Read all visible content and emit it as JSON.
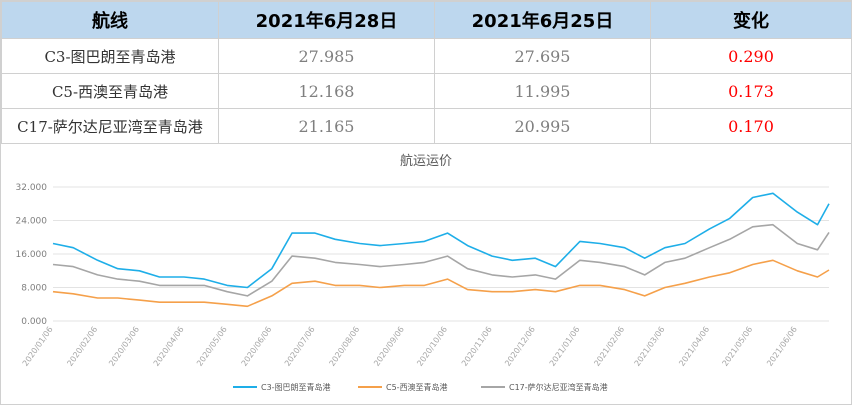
{
  "table": {
    "headers": [
      "航线",
      "2021年6月28日",
      "2021年6月25日",
      "变化"
    ],
    "rows": [
      [
        "C3-图巴朗至青岛港",
        "27.985",
        "27.695",
        "0.290"
      ],
      [
        "C5-西澳至青岛港",
        "12.168",
        "11.995",
        "0.173"
      ],
      [
        "C17-萨尔达尼亚湾至青岛港",
        "21.165",
        "20.995",
        "0.170"
      ]
    ]
  },
  "colors": {
    "c3": "#1eaee8",
    "c5": "#f5a04a",
    "c17": "#a6a6a6",
    "header_bg": "#bdd7ee",
    "positive": "#ff0000"
  },
  "chart_data": {
    "type": "line",
    "title": "航运运价",
    "ylim": [
      0,
      32
    ],
    "yticks": [
      "0.000",
      "8.000",
      "16.000",
      "24.000",
      "32.000"
    ],
    "xticks": [
      "2020/01/06",
      "2020/02/06",
      "2020/03/06",
      "2020/04/06",
      "2020/05/06",
      "2020/06/06",
      "2020/07/06",
      "2020/08/06",
      "2020/09/06",
      "2020/10/06",
      "2020/11/06",
      "2020/12/06",
      "2021/01/06",
      "2021/02/06",
      "2021/03/06",
      "2021/04/06",
      "2021/05/06",
      "2021/06/06"
    ],
    "x": [
      "2020/01/06",
      "2020/01/20",
      "2020/02/06",
      "2020/02/20",
      "2020/03/06",
      "2020/03/20",
      "2020/04/06",
      "2020/04/20",
      "2020/05/06",
      "2020/05/20",
      "2020/06/06",
      "2020/06/20",
      "2020/07/06",
      "2020/07/20",
      "2020/08/06",
      "2020/08/20",
      "2020/09/06",
      "2020/09/20",
      "2020/10/06",
      "2020/10/20",
      "2020/11/06",
      "2020/11/20",
      "2020/12/06",
      "2020/12/20",
      "2021/01/06",
      "2021/01/20",
      "2021/02/06",
      "2021/02/20",
      "2021/03/06",
      "2021/03/20",
      "2021/04/06",
      "2021/04/20",
      "2021/05/06",
      "2021/05/20",
      "2021/06/06",
      "2021/06/20",
      "2021/06/28"
    ],
    "legend_position": "bottom",
    "series": [
      {
        "name": "C3-图巴朗至青岛港",
        "values": [
          18.5,
          17.5,
          14.5,
          12.5,
          12.0,
          10.5,
          10.5,
          10.0,
          8.5,
          8.0,
          12.5,
          21.0,
          21.0,
          19.5,
          18.5,
          18.0,
          18.5,
          19.0,
          21.0,
          18.0,
          15.5,
          14.5,
          15.0,
          13.0,
          19.0,
          18.5,
          17.5,
          15.0,
          17.5,
          18.5,
          22.0,
          24.5,
          29.5,
          30.5,
          26.0,
          23.0,
          27.985
        ]
      },
      {
        "name": "C5-西澳至青岛港",
        "values": [
          7.0,
          6.5,
          5.5,
          5.5,
          5.0,
          4.5,
          4.5,
          4.5,
          4.0,
          3.5,
          6.0,
          9.0,
          9.5,
          8.5,
          8.5,
          8.0,
          8.5,
          8.5,
          10.0,
          7.5,
          7.0,
          7.0,
          7.5,
          7.0,
          8.5,
          8.5,
          7.5,
          6.0,
          8.0,
          9.0,
          10.5,
          11.5,
          13.5,
          14.5,
          12.0,
          10.5,
          12.168
        ]
      },
      {
        "name": "C17-萨尔达尼亚湾至青岛港",
        "values": [
          13.5,
          13.0,
          11.0,
          10.0,
          9.5,
          8.5,
          8.5,
          8.5,
          7.0,
          6.0,
          9.5,
          15.5,
          15.0,
          14.0,
          13.5,
          13.0,
          13.5,
          14.0,
          15.5,
          12.5,
          11.0,
          10.5,
          11.0,
          10.0,
          14.5,
          14.0,
          13.0,
          11.0,
          14.0,
          15.0,
          17.5,
          19.5,
          22.5,
          23.0,
          18.5,
          17.0,
          21.165
        ]
      }
    ]
  }
}
